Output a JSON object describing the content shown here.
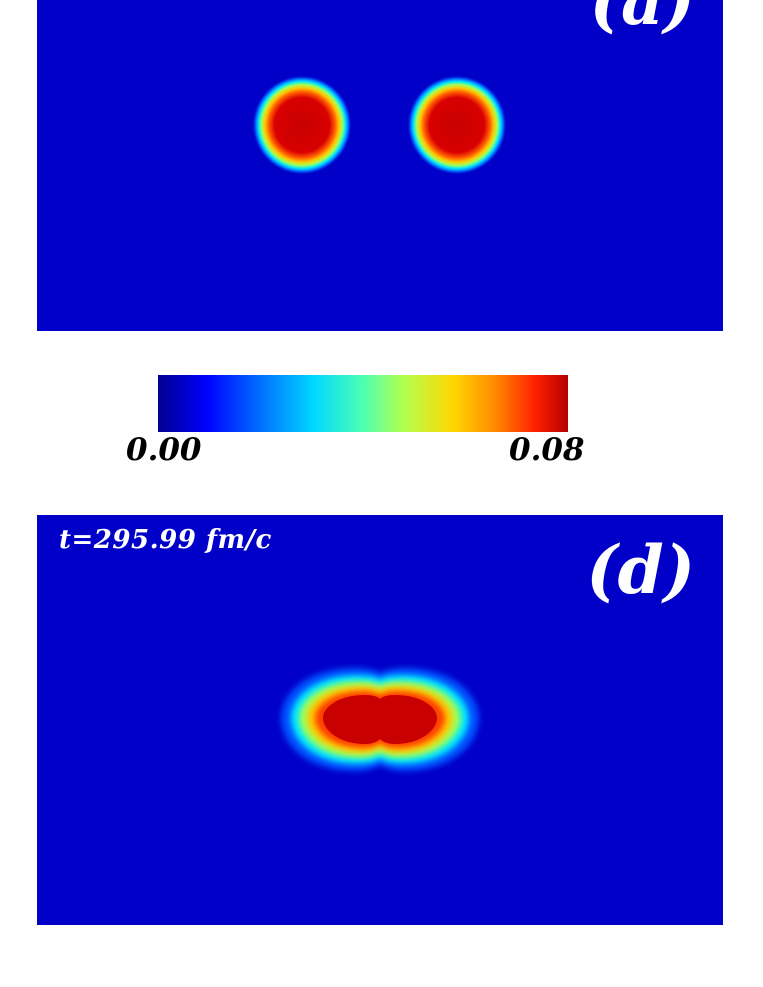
{
  "chart_data": [
    {
      "type": "heatmap",
      "panel_label": "(a)",
      "time_label": "",
      "field_colors": {
        "background": "#0000c8",
        "peak": "#c80000"
      },
      "blobs": [
        {
          "shape": "circle",
          "description": "left droplet"
        },
        {
          "shape": "circle",
          "description": "right droplet"
        }
      ]
    },
    {
      "type": "heatmap",
      "panel_label": "(d)",
      "time_label": "t=295.99 fm/c",
      "field_colors": {
        "background": "#0000c8",
        "peak": "#c80000"
      },
      "blobs": [
        {
          "shape": "merged-peanut",
          "description": "fused droplet"
        }
      ]
    }
  ],
  "colorbar": {
    "min_label": "0.00",
    "max_label": "0.08",
    "range": [
      0.0,
      0.08
    ],
    "colormap": "jet"
  }
}
